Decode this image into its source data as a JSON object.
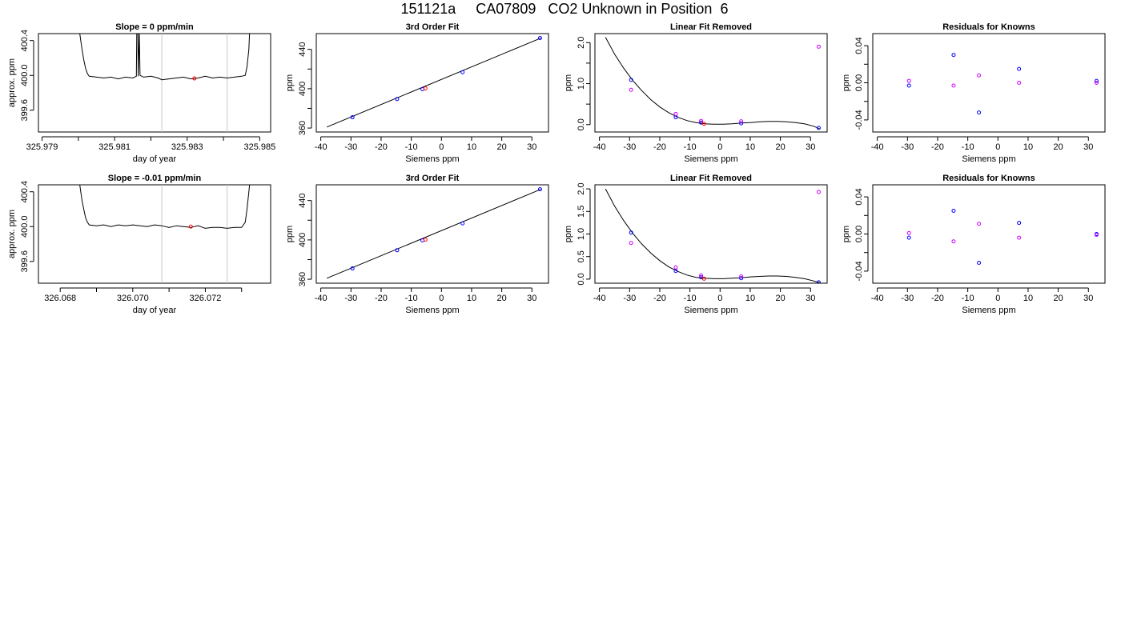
{
  "page": {
    "title": "151121a     CA07809   CO2 Unknown in Position  6"
  },
  "colors": {
    "line": "#000000",
    "known": "#0000ff",
    "alt_known": "#cc00ff",
    "unknown": "#ff0000",
    "marker_line": "#c8c8c8",
    "frame": "#000000"
  },
  "chart_data": [
    {
      "type": "line",
      "title": "Slope =  0  ppm/min",
      "xlabel": "day of year",
      "ylabel": "approx. ppm",
      "xlim": [
        325.9789,
        325.9853
      ],
      "ylim": [
        399.35,
        400.48
      ],
      "xticks": [
        325.979,
        325.98,
        325.981,
        325.982,
        325.983,
        325.984,
        325.985
      ],
      "xtick_labels": [
        "325.979",
        "",
        "325.981",
        "",
        "325.983",
        "",
        "325.985"
      ],
      "yticks": [
        399.6,
        400.0,
        400.4
      ],
      "ytick_labels": [
        "399.6",
        "400.0",
        "400.4"
      ],
      "markers_x": [
        325.9823,
        325.9841
      ],
      "trace": {
        "x": [
          325.98,
          325.98005,
          325.9801,
          325.98015,
          325.9802,
          325.98025,
          325.9803,
          325.9805,
          325.9807,
          325.9809,
          325.9811,
          325.9813,
          325.9815,
          325.9816,
          325.98161,
          325.98164,
          325.98165,
          325.98168,
          325.9817,
          325.9818,
          325.982,
          325.9822,
          325.9823,
          325.9825,
          325.9827,
          325.9829,
          325.9831,
          325.9833,
          325.9835,
          325.9837,
          325.9839,
          325.9841,
          325.9843,
          325.9845,
          325.9846,
          325.98465,
          325.9847,
          325.98473
        ],
        "y": [
          400.6,
          400.45,
          400.3,
          400.18,
          400.08,
          400.02,
          399.99,
          399.98,
          399.97,
          399.98,
          399.96,
          399.98,
          399.97,
          399.99,
          400.5,
          400.5,
          399.99,
          400.5,
          400.0,
          399.98,
          399.99,
          399.97,
          399.95,
          399.96,
          399.97,
          399.98,
          399.96,
          399.97,
          399.99,
          399.97,
          399.98,
          399.97,
          399.98,
          399.99,
          400.0,
          400.1,
          400.3,
          400.6
        ]
      },
      "points": [
        {
          "x": 325.9832,
          "y": 399.965,
          "role": "unknown"
        }
      ]
    },
    {
      "type": "scatter",
      "title": "3rd Order Fit",
      "xlabel": "Siemens ppm",
      "ylabel": "ppm",
      "xlim": [
        -41.5,
        35.5
      ],
      "ylim": [
        356,
        456
      ],
      "xticks": [
        -40,
        -30,
        -20,
        -10,
        0,
        10,
        20,
        30
      ],
      "xtick_labels": [
        "-40",
        "-30",
        "-20",
        "-10",
        "0",
        "10",
        "20",
        "30"
      ],
      "yticks": [
        360,
        380,
        400,
        420,
        440
      ],
      "ytick_labels": [
        "360",
        "",
        "400",
        "",
        "440"
      ],
      "fit_line": {
        "x": [
          -38,
          33
        ],
        "y": [
          361,
          451.5
        ]
      },
      "points": [
        {
          "x": -29.5,
          "y": 371,
          "role": "known"
        },
        {
          "x": -14.7,
          "y": 389.5,
          "role": "known"
        },
        {
          "x": -6.3,
          "y": 399.5,
          "role": "known"
        },
        {
          "x": -5.3,
          "y": 400.3,
          "role": "unknown"
        },
        {
          "x": 7.0,
          "y": 416.8,
          "role": "known"
        },
        {
          "x": 32.7,
          "y": 451.5,
          "role": "known"
        }
      ]
    },
    {
      "type": "scatter",
      "title": "Linear Fit Removed",
      "xlabel": "Siemens ppm",
      "ylabel": "ppm",
      "xlim": [
        -41.5,
        35.5
      ],
      "ylim": [
        -0.18,
        2.22
      ],
      "xticks": [
        -40,
        -30,
        -20,
        -10,
        0,
        10,
        20,
        30
      ],
      "xtick_labels": [
        "-40",
        "-30",
        "-20",
        "-10",
        "0",
        "10",
        "20",
        "30"
      ],
      "yticks": [
        0.0,
        0.5,
        1.0,
        1.5,
        2.0
      ],
      "ytick_labels": [
        "0.0",
        "",
        "1.0",
        "",
        "2.0"
      ],
      "curve": {
        "x": [
          -38,
          -35,
          -32,
          -29,
          -26,
          -23,
          -20,
          -17,
          -14,
          -11,
          -8,
          -5,
          -2,
          1,
          4,
          7,
          10,
          13,
          16,
          19,
          22,
          25,
          28,
          31,
          33
        ],
        "y": [
          2.13,
          1.72,
          1.38,
          1.08,
          0.83,
          0.61,
          0.43,
          0.29,
          0.18,
          0.1,
          0.05,
          0.02,
          0.01,
          0.01,
          0.02,
          0.04,
          0.05,
          0.07,
          0.08,
          0.08,
          0.07,
          0.05,
          0.02,
          -0.04,
          -0.1
        ]
      },
      "points": [
        {
          "x": -29.5,
          "y": 1.09,
          "role": "known"
        },
        {
          "x": -29.5,
          "y": 0.85,
          "role": "alt_known"
        },
        {
          "x": -14.7,
          "y": 0.18,
          "role": "known"
        },
        {
          "x": -14.7,
          "y": 0.26,
          "role": "alt_known"
        },
        {
          "x": -6.3,
          "y": 0.05,
          "role": "known"
        },
        {
          "x": -6.3,
          "y": 0.09,
          "role": "alt_known"
        },
        {
          "x": -5.3,
          "y": 0.02,
          "role": "unknown"
        },
        {
          "x": 7.0,
          "y": 0.03,
          "role": "known"
        },
        {
          "x": 7.0,
          "y": 0.08,
          "role": "alt_known"
        },
        {
          "x": 32.7,
          "y": -0.08,
          "role": "known"
        },
        {
          "x": 32.7,
          "y": 1.9,
          "role": "alt_known"
        }
      ]
    },
    {
      "type": "scatter",
      "title": "Residuals for Knowns",
      "xlabel": "Siemens ppm",
      "ylabel": "ppm",
      "xlim": [
        -41.5,
        35.5
      ],
      "ylim": [
        -0.053,
        0.053
      ],
      "xticks": [
        -40,
        -30,
        -20,
        -10,
        0,
        10,
        20,
        30
      ],
      "xtick_labels": [
        "-40",
        "-30",
        "-20",
        "-10",
        "0",
        "10",
        "20",
        "30"
      ],
      "yticks": [
        -0.04,
        -0.02,
        0.0,
        0.02,
        0.04
      ],
      "ytick_labels": [
        "-0.04",
        "",
        "0.00",
        "",
        "0.04"
      ],
      "points": [
        {
          "x": -29.5,
          "y": -0.003,
          "role": "known"
        },
        {
          "x": -29.5,
          "y": 0.002,
          "role": "alt_known"
        },
        {
          "x": -14.7,
          "y": 0.03,
          "role": "known"
        },
        {
          "x": -14.7,
          "y": -0.003,
          "role": "alt_known"
        },
        {
          "x": -6.3,
          "y": -0.032,
          "role": "known"
        },
        {
          "x": -6.3,
          "y": 0.008,
          "role": "alt_known"
        },
        {
          "x": 7.0,
          "y": 0.015,
          "role": "known"
        },
        {
          "x": 7.0,
          "y": 0.0,
          "role": "alt_known"
        },
        {
          "x": 32.7,
          "y": 0.002,
          "role": "known"
        },
        {
          "x": 32.7,
          "y": 0.0,
          "role": "alt_known"
        }
      ]
    },
    {
      "type": "line",
      "title": "Slope =  -0.01  ppm/min",
      "xlabel": "day of year",
      "ylabel": "approx. ppm",
      "xlim": [
        326.0674,
        326.0738
      ],
      "ylim": [
        399.35,
        400.48
      ],
      "xticks": [
        326.068,
        326.069,
        326.07,
        326.071,
        326.072,
        326.073
      ],
      "xtick_labels": [
        "326.068",
        "",
        "326.070",
        "",
        "326.072",
        ""
      ],
      "yticks": [
        399.6,
        400.0,
        400.4
      ],
      "ytick_labels": [
        "399.6",
        "400.0",
        "400.4"
      ],
      "markers_x": [
        326.0708,
        326.0726
      ],
      "trace": {
        "x": [
          326.0685,
          326.06855,
          326.0686,
          326.06865,
          326.0687,
          326.06875,
          326.0688,
          326.069,
          326.0692,
          326.0694,
          326.0696,
          326.0698,
          326.07,
          326.0702,
          326.0704,
          326.0706,
          326.0708,
          326.071,
          326.0712,
          326.0714,
          326.0716,
          326.0718,
          326.072,
          326.0722,
          326.0724,
          326.0726,
          326.0728,
          326.073,
          326.0731,
          326.07315,
          326.0732,
          326.07325
        ],
        "y": [
          400.6,
          400.45,
          400.3,
          400.2,
          400.1,
          400.05,
          400.02,
          400.01,
          400.02,
          400.0,
          400.02,
          400.01,
          400.02,
          400.01,
          400.0,
          400.02,
          400.01,
          399.99,
          400.01,
          400.0,
          399.99,
          400.01,
          399.98,
          399.99,
          399.99,
          399.98,
          399.99,
          399.99,
          400.05,
          400.2,
          400.4,
          400.6
        ]
      },
      "points": [
        {
          "x": 326.0716,
          "y": 400.0,
          "role": "unknown"
        }
      ]
    },
    {
      "type": "scatter",
      "title": "3rd Order Fit",
      "xlabel": "Siemens ppm",
      "ylabel": "ppm",
      "xlim": [
        -41.5,
        35.5
      ],
      "ylim": [
        356,
        456
      ],
      "xticks": [
        -40,
        -30,
        -20,
        -10,
        0,
        10,
        20,
        30
      ],
      "xtick_labels": [
        "-40",
        "-30",
        "-20",
        "-10",
        "0",
        "10",
        "20",
        "30"
      ],
      "yticks": [
        360,
        380,
        400,
        420,
        440
      ],
      "ytick_labels": [
        "360",
        "",
        "400",
        "",
        "440"
      ],
      "fit_line": {
        "x": [
          -38,
          33
        ],
        "y": [
          361,
          451.5
        ]
      },
      "points": [
        {
          "x": -29.5,
          "y": 371,
          "role": "known"
        },
        {
          "x": -14.7,
          "y": 389.5,
          "role": "known"
        },
        {
          "x": -6.3,
          "y": 399.5,
          "role": "known"
        },
        {
          "x": -5.3,
          "y": 400.3,
          "role": "unknown"
        },
        {
          "x": 7.0,
          "y": 416.8,
          "role": "known"
        },
        {
          "x": 32.7,
          "y": 451.5,
          "role": "known"
        }
      ]
    },
    {
      "type": "scatter",
      "title": "Linear Fit Removed",
      "xlabel": "Siemens ppm",
      "ylabel": "ppm",
      "xlim": [
        -41.5,
        35.5
      ],
      "ylim": [
        -0.09,
        2.09
      ],
      "xticks": [
        -40,
        -30,
        -20,
        -10,
        0,
        10,
        20,
        30
      ],
      "xtick_labels": [
        "-40",
        "-30",
        "-20",
        "-10",
        "0",
        "10",
        "20",
        "30"
      ],
      "yticks": [
        0.0,
        0.5,
        1.0,
        1.5,
        2.0
      ],
      "ytick_labels": [
        "0.0",
        "0.5",
        "1.0",
        "1.5",
        "2.0"
      ],
      "curve": {
        "x": [
          -38,
          -35,
          -32,
          -29,
          -26,
          -23,
          -20,
          -17,
          -14,
          -11,
          -8,
          -5,
          -2,
          1,
          4,
          7,
          10,
          13,
          16,
          19,
          22,
          25,
          28,
          31,
          33
        ],
        "y": [
          2.0,
          1.62,
          1.3,
          1.02,
          0.78,
          0.58,
          0.41,
          0.27,
          0.17,
          0.09,
          0.04,
          0.02,
          0.01,
          0.01,
          0.02,
          0.03,
          0.05,
          0.06,
          0.07,
          0.07,
          0.06,
          0.04,
          0.01,
          -0.04,
          -0.08
        ]
      },
      "points": [
        {
          "x": -29.5,
          "y": 1.03,
          "role": "known"
        },
        {
          "x": -29.5,
          "y": 0.8,
          "role": "alt_known"
        },
        {
          "x": -14.7,
          "y": 0.18,
          "role": "known"
        },
        {
          "x": -14.7,
          "y": 0.26,
          "role": "alt_known"
        },
        {
          "x": -6.3,
          "y": 0.04,
          "role": "known"
        },
        {
          "x": -6.3,
          "y": 0.08,
          "role": "alt_known"
        },
        {
          "x": -5.3,
          "y": 0.01,
          "role": "unknown"
        },
        {
          "x": 7.0,
          "y": 0.02,
          "role": "known"
        },
        {
          "x": 7.0,
          "y": 0.06,
          "role": "alt_known"
        },
        {
          "x": 32.7,
          "y": -0.07,
          "role": "known"
        },
        {
          "x": 32.7,
          "y": 1.93,
          "role": "alt_known"
        }
      ]
    },
    {
      "type": "scatter",
      "title": "Residuals for Knowns",
      "xlabel": "Siemens ppm",
      "ylabel": "ppm",
      "xlim": [
        -41.5,
        35.5
      ],
      "ylim": [
        -0.053,
        0.053
      ],
      "xticks": [
        -40,
        -30,
        -20,
        -10,
        0,
        10,
        20,
        30
      ],
      "xtick_labels": [
        "-40",
        "-30",
        "-20",
        "-10",
        "0",
        "10",
        "20",
        "30"
      ],
      "yticks": [
        -0.04,
        -0.02,
        0.0,
        0.02,
        0.04
      ],
      "ytick_labels": [
        "-0.04",
        "",
        "0.00",
        "",
        "0.04"
      ],
      "points": [
        {
          "x": -29.5,
          "y": -0.004,
          "role": "known"
        },
        {
          "x": -29.5,
          "y": 0.001,
          "role": "alt_known"
        },
        {
          "x": -14.7,
          "y": 0.025,
          "role": "known"
        },
        {
          "x": -14.7,
          "y": -0.008,
          "role": "alt_known"
        },
        {
          "x": -6.3,
          "y": -0.031,
          "role": "known"
        },
        {
          "x": -6.3,
          "y": 0.011,
          "role": "alt_known"
        },
        {
          "x": 7.0,
          "y": 0.012,
          "role": "known"
        },
        {
          "x": 7.0,
          "y": -0.004,
          "role": "alt_known"
        },
        {
          "x": 32.7,
          "y": 0.0,
          "role": "known"
        },
        {
          "x": 32.7,
          "y": -0.001,
          "role": "alt_known"
        }
      ]
    }
  ]
}
